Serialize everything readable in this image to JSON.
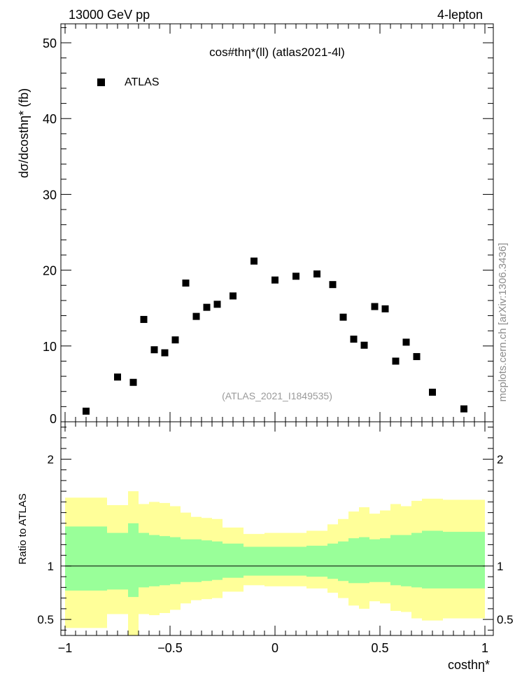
{
  "header": {
    "energy_label": "13000 GeV pp",
    "process_label": "4-lepton"
  },
  "side_note": "mcplots.cern.ch [arXiv:1306.3436]",
  "colors": {
    "band_outer": "#ffff99",
    "band_inner": "#99ff99",
    "marker": "#000000",
    "reference_line": "#000000"
  },
  "chart_data": [
    {
      "type": "scatter",
      "title": "cos#thη*(ll) (atlas2021-4l)",
      "ylabel": "dσ/dcosthη* (fb)",
      "xlabel": "costhη*",
      "annotation": "(ATLAS_2021_I1849535)",
      "xlim": [
        -1.02,
        1.04
      ],
      "ylim": [
        0,
        52.5
      ],
      "xticks": [
        -1,
        -0.5,
        0,
        0.5,
        1
      ],
      "xtick_labels": [
        "−1",
        "−0.5",
        "0",
        "0.5",
        "1"
      ],
      "yticks": [
        0,
        10,
        20,
        30,
        40,
        50
      ],
      "ytick_labels": [
        "0",
        "10",
        "20",
        "30",
        "40",
        "50"
      ],
      "legend": {
        "position": "top-left",
        "entries": [
          "ATLAS"
        ]
      },
      "series": [
        {
          "name": "ATLAS",
          "marker": "square",
          "points": [
            {
              "x": -0.9,
              "y": 1.4
            },
            {
              "x": -0.75,
              "y": 5.9
            },
            {
              "x": -0.675,
              "y": 5.2
            },
            {
              "x": -0.625,
              "y": 13.5
            },
            {
              "x": -0.575,
              "y": 9.5
            },
            {
              "x": -0.525,
              "y": 9.1
            },
            {
              "x": -0.475,
              "y": 10.8
            },
            {
              "x": -0.425,
              "y": 18.3
            },
            {
              "x": -0.375,
              "y": 13.9
            },
            {
              "x": -0.325,
              "y": 15.1
            },
            {
              "x": -0.275,
              "y": 15.5
            },
            {
              "x": -0.2,
              "y": 16.6
            },
            {
              "x": -0.1,
              "y": 21.2
            },
            {
              "x": 0.0,
              "y": 18.7
            },
            {
              "x": 0.1,
              "y": 19.2
            },
            {
              "x": 0.2,
              "y": 19.5
            },
            {
              "x": 0.275,
              "y": 18.1
            },
            {
              "x": 0.325,
              "y": 13.8
            },
            {
              "x": 0.375,
              "y": 10.9
            },
            {
              "x": 0.425,
              "y": 10.1
            },
            {
              "x": 0.475,
              "y": 15.2
            },
            {
              "x": 0.525,
              "y": 14.9
            },
            {
              "x": 0.575,
              "y": 8.0
            },
            {
              "x": 0.625,
              "y": 10.5
            },
            {
              "x": 0.675,
              "y": 8.6
            },
            {
              "x": 0.75,
              "y": 3.9
            },
            {
              "x": 0.9,
              "y": 1.7
            }
          ]
        }
      ]
    },
    {
      "type": "area",
      "ylabel": "Ratio to ATLAS",
      "xlim": [
        -1.02,
        1.04
      ],
      "ylim": [
        0.35,
        2.35
      ],
      "yticks": [
        0.5,
        1,
        2
      ],
      "ytick_labels": [
        "0.5",
        "1",
        "2"
      ],
      "reference_line": 1,
      "grid": false,
      "bins": [
        {
          "x0": -1.0,
          "x1": -0.8,
          "outer": [
            0.42,
            1.64
          ],
          "inner": [
            0.77,
            1.37
          ]
        },
        {
          "x0": -0.8,
          "x1": -0.7,
          "outer": [
            0.55,
            1.57
          ],
          "inner": [
            0.78,
            1.31
          ]
        },
        {
          "x0": -0.7,
          "x1": -0.65,
          "outer": [
            0.32,
            1.7
          ],
          "inner": [
            0.71,
            1.4
          ]
        },
        {
          "x0": -0.65,
          "x1": -0.6,
          "outer": [
            0.55,
            1.58
          ],
          "inner": [
            0.8,
            1.31
          ]
        },
        {
          "x0": -0.6,
          "x1": -0.55,
          "outer": [
            0.54,
            1.6
          ],
          "inner": [
            0.81,
            1.29
          ]
        },
        {
          "x0": -0.55,
          "x1": -0.5,
          "outer": [
            0.56,
            1.59
          ],
          "inner": [
            0.82,
            1.28
          ]
        },
        {
          "x0": -0.5,
          "x1": -0.45,
          "outer": [
            0.59,
            1.56
          ],
          "inner": [
            0.83,
            1.27
          ]
        },
        {
          "x0": -0.45,
          "x1": -0.4,
          "outer": [
            0.65,
            1.5
          ],
          "inner": [
            0.85,
            1.25
          ]
        },
        {
          "x0": -0.4,
          "x1": -0.35,
          "outer": [
            0.68,
            1.46
          ],
          "inner": [
            0.85,
            1.25
          ]
        },
        {
          "x0": -0.35,
          "x1": -0.3,
          "outer": [
            0.69,
            1.45
          ],
          "inner": [
            0.86,
            1.24
          ]
        },
        {
          "x0": -0.3,
          "x1": -0.25,
          "outer": [
            0.7,
            1.44
          ],
          "inner": [
            0.87,
            1.23
          ]
        },
        {
          "x0": -0.25,
          "x1": -0.15,
          "outer": [
            0.76,
            1.36
          ],
          "inner": [
            0.89,
            1.21
          ]
        },
        {
          "x0": -0.15,
          "x1": -0.05,
          "outer": [
            0.82,
            1.3
          ],
          "inner": [
            0.91,
            1.18
          ]
        },
        {
          "x0": -0.05,
          "x1": 0.05,
          "outer": [
            0.81,
            1.31
          ],
          "inner": [
            0.91,
            1.18
          ]
        },
        {
          "x0": 0.05,
          "x1": 0.15,
          "outer": [
            0.81,
            1.31
          ],
          "inner": [
            0.91,
            1.18
          ]
        },
        {
          "x0": 0.15,
          "x1": 0.25,
          "outer": [
            0.79,
            1.33
          ],
          "inner": [
            0.9,
            1.19
          ]
        },
        {
          "x0": 0.25,
          "x1": 0.3,
          "outer": [
            0.75,
            1.39
          ],
          "inner": [
            0.88,
            1.21
          ]
        },
        {
          "x0": 0.3,
          "x1": 0.35,
          "outer": [
            0.7,
            1.44
          ],
          "inner": [
            0.86,
            1.23
          ]
        },
        {
          "x0": 0.35,
          "x1": 0.4,
          "outer": [
            0.63,
            1.51
          ],
          "inner": [
            0.84,
            1.26
          ]
        },
        {
          "x0": 0.4,
          "x1": 0.45,
          "outer": [
            0.6,
            1.55
          ],
          "inner": [
            0.84,
            1.27
          ]
        },
        {
          "x0": 0.45,
          "x1": 0.5,
          "outer": [
            0.67,
            1.49
          ],
          "inner": [
            0.85,
            1.25
          ]
        },
        {
          "x0": 0.5,
          "x1": 0.55,
          "outer": [
            0.65,
            1.52
          ],
          "inner": [
            0.85,
            1.26
          ]
        },
        {
          "x0": 0.55,
          "x1": 0.6,
          "outer": [
            0.58,
            1.58
          ],
          "inner": [
            0.82,
            1.29
          ]
        },
        {
          "x0": 0.6,
          "x1": 0.65,
          "outer": [
            0.57,
            1.56
          ],
          "inner": [
            0.81,
            1.29
          ]
        },
        {
          "x0": 0.65,
          "x1": 0.7,
          "outer": [
            0.51,
            1.61
          ],
          "inner": [
            0.8,
            1.31
          ]
        },
        {
          "x0": 0.7,
          "x1": 0.8,
          "outer": [
            0.49,
            1.63
          ],
          "inner": [
            0.79,
            1.33
          ]
        },
        {
          "x0": 0.8,
          "x1": 1.0,
          "outer": [
            0.51,
            1.62
          ],
          "inner": [
            0.79,
            1.32
          ]
        }
      ]
    }
  ]
}
